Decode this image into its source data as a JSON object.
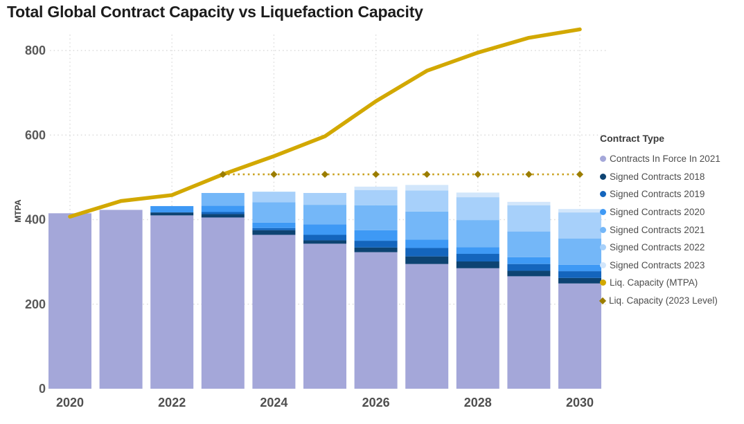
{
  "title": "Total Global Contract Capacity vs Liquefaction Capacity",
  "y_axis": {
    "title": "MTPA",
    "ticks": [
      0,
      200,
      400,
      600,
      800
    ]
  },
  "x_axis": {
    "labeled_years": [
      2020,
      2022,
      2024,
      2026,
      2028,
      2030
    ]
  },
  "legend": {
    "title": "Contract Type",
    "items": [
      {
        "label": "Contracts In Force In 2021",
        "marker": "circle",
        "color": "#a4a7d9"
      },
      {
        "label": "Signed Contracts 2018",
        "marker": "circle",
        "color": "#0d4372"
      },
      {
        "label": "Signed Contracts 2019",
        "marker": "circle",
        "color": "#1465bd"
      },
      {
        "label": "Signed Contracts 2020",
        "marker": "circle",
        "color": "#3e99f5"
      },
      {
        "label": "Signed Contracts 2021",
        "marker": "circle",
        "color": "#74b7f8"
      },
      {
        "label": "Signed Contracts 2022",
        "marker": "circle",
        "color": "#a7d0fa"
      },
      {
        "label": "Signed Contracts 2023",
        "marker": "circle",
        "color": "#d2e6fb"
      },
      {
        "label": "Liq. Capacity (MTPA)",
        "marker": "circle",
        "color": "#d2a800"
      },
      {
        "label": "Liq. Capacity (2023 Level)",
        "marker": "diamond",
        "color": "#9b7d00"
      }
    ]
  },
  "chart_data": {
    "type": "bar",
    "subtype": "stacked-bar-with-lines",
    "title": "Total Global Contract Capacity vs Liquefaction Capacity",
    "xlabel": "",
    "ylabel": "MTPA",
    "ylim": [
      0,
      860
    ],
    "grid": "dotted",
    "legend_position": "right",
    "x": [
      2020,
      2021,
      2022,
      2023,
      2024,
      2025,
      2026,
      2027,
      2028,
      2029,
      2030
    ],
    "bar_series": [
      {
        "name": "Contracts In Force In 2021",
        "color": "#a4a7d9",
        "values": [
          415,
          423,
          410,
          405,
          364,
          343,
          323,
          295,
          285,
          266,
          249
        ]
      },
      {
        "name": "Signed Contracts 2018",
        "color": "#0d4372",
        "values": [
          0,
          0,
          7,
          8,
          11,
          8,
          11,
          18,
          16,
          13,
          13
        ]
      },
      {
        "name": "Signed Contracts 2019",
        "color": "#1465bd",
        "values": [
          0,
          0,
          0,
          5,
          5,
          13,
          16,
          20,
          18,
          16,
          16
        ]
      },
      {
        "name": "Signed Contracts 2020",
        "color": "#3e99f5",
        "values": [
          0,
          0,
          15,
          15,
          13,
          25,
          25,
          20,
          16,
          16,
          15
        ]
      },
      {
        "name": "Signed Contracts 2021",
        "color": "#74b7f8",
        "values": [
          0,
          0,
          0,
          30,
          48,
          46,
          59,
          66,
          64,
          61,
          62
        ]
      },
      {
        "name": "Signed Contracts 2022",
        "color": "#a7d0fa",
        "values": [
          0,
          0,
          0,
          0,
          25,
          28,
          36,
          50,
          54,
          62,
          62
        ]
      },
      {
        "name": "Signed Contracts 2023",
        "color": "#d2e6fb",
        "values": [
          0,
          0,
          0,
          0,
          0,
          0,
          8,
          13,
          11,
          8,
          8
        ]
      }
    ],
    "line_series": [
      {
        "name": "Liq. Capacity (MTPA)",
        "color": "#d2a800",
        "style": "solid",
        "values": [
          407,
          444,
          458,
          507,
          550,
          597,
          680,
          752,
          795,
          830,
          850
        ]
      },
      {
        "name": "Liq. Capacity (2023 Level)",
        "color": "#c9a11e",
        "marker_color": "#9b7d00",
        "style": "dotted-diamond",
        "values": [
          null,
          null,
          null,
          507,
          507,
          507,
          507,
          507,
          507,
          507,
          507
        ]
      }
    ]
  }
}
